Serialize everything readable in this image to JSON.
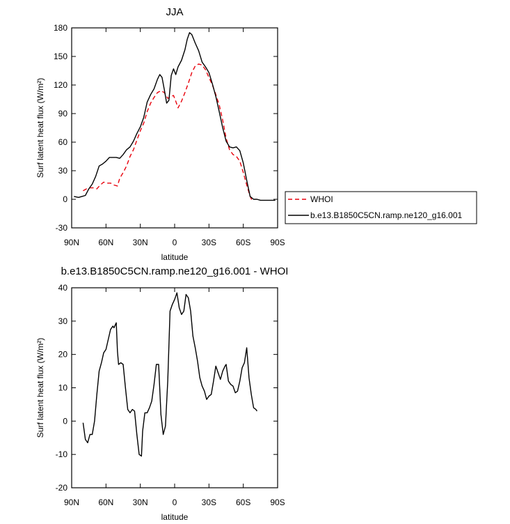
{
  "chart_data": [
    {
      "type": "line",
      "title": "JJA",
      "xlabel": "latitude",
      "ylabel": "Surf latent heat flux (W/m²)",
      "xlim": [
        90,
        -90
      ],
      "ylim": [
        -30,
        180
      ],
      "x_ticks": [
        90,
        60,
        30,
        0,
        -30,
        -60,
        -90
      ],
      "x_tick_labels": [
        "90N",
        "60N",
        "30N",
        "0",
        "30S",
        "60S",
        "90S"
      ],
      "y_ticks": [
        -30,
        0,
        30,
        60,
        90,
        120,
        150,
        180
      ],
      "y_tick_labels": [
        "-30",
        "0",
        "30",
        "60",
        "90",
        "120",
        "150",
        "180"
      ],
      "legend": "right",
      "series": [
        {
          "name": "WHOI",
          "color": "#e8000b",
          "dash": "dashed",
          "points": [
            [
              80,
              9
            ],
            [
              77,
              11
            ],
            [
              74,
              12
            ],
            [
              71,
              12
            ],
            [
              68,
              11
            ],
            [
              65,
              15
            ],
            [
              62,
              18
            ],
            [
              59,
              17
            ],
            [
              56,
              17
            ],
            [
              53,
              15
            ],
            [
              50,
              14
            ],
            [
              48,
              22
            ],
            [
              45,
              28
            ],
            [
              42,
              35
            ],
            [
              39,
              45
            ],
            [
              36,
              52
            ],
            [
              33,
              62
            ],
            [
              30,
              72
            ],
            [
              27,
              80
            ],
            [
              24,
              92
            ],
            [
              21,
              101
            ],
            [
              18,
              107
            ],
            [
              15,
              112
            ],
            [
              12,
              114
            ],
            [
              9,
              112
            ],
            [
              6,
              106
            ],
            [
              3,
              108
            ],
            [
              1,
              109
            ],
            [
              -1,
              103
            ],
            [
              -3,
              96
            ],
            [
              -6,
              103
            ],
            [
              -9,
              112
            ],
            [
              -12,
              122
            ],
            [
              -15,
              133
            ],
            [
              -18,
              140
            ],
            [
              -21,
              142
            ],
            [
              -24,
              141
            ],
            [
              -27,
              136
            ],
            [
              -30,
              128
            ],
            [
              -33,
              120
            ],
            [
              -36,
              110
            ],
            [
              -39,
              99
            ],
            [
              -42,
              83
            ],
            [
              -45,
              64
            ],
            [
              -48,
              52
            ],
            [
              -51,
              47
            ],
            [
              -54,
              45
            ],
            [
              -57,
              40
            ],
            [
              -60,
              28
            ],
            [
              -63,
              15
            ],
            [
              -66,
              3
            ],
            [
              -68,
              -2
            ]
          ]
        },
        {
          "name": "b.e13.B1850C5CN.ramp.ne120_g16.001",
          "color": "#000000",
          "dash": "solid",
          "points": [
            [
              88,
              3
            ],
            [
              84,
              2
            ],
            [
              81,
              3
            ],
            [
              78,
              4
            ],
            [
              75,
              11
            ],
            [
              72,
              16
            ],
            [
              69,
              24
            ],
            [
              66,
              35
            ],
            [
              63,
              37
            ],
            [
              60,
              40
            ],
            [
              57,
              44
            ],
            [
              54,
              44
            ],
            [
              51,
              44
            ],
            [
              48,
              43
            ],
            [
              45,
              47
            ],
            [
              42,
              52
            ],
            [
              39,
              55
            ],
            [
              36,
              61
            ],
            [
              33,
              69
            ],
            [
              30,
              76
            ],
            [
              27,
              86
            ],
            [
              24,
              102
            ],
            [
              21,
              110
            ],
            [
              18,
              116
            ],
            [
              15,
              126
            ],
            [
              13,
              131
            ],
            [
              11,
              128
            ],
            [
              9,
              115
            ],
            [
              7,
              101
            ],
            [
              5,
              104
            ],
            [
              3,
              130
            ],
            [
              1,
              137
            ],
            [
              -1,
              131
            ],
            [
              -3,
              139
            ],
            [
              -6,
              146
            ],
            [
              -9,
              157
            ],
            [
              -11,
              168
            ],
            [
              -13,
              175
            ],
            [
              -15,
              173
            ],
            [
              -18,
              164
            ],
            [
              -21,
              156
            ],
            [
              -24,
              144
            ],
            [
              -27,
              139
            ],
            [
              -30,
              133
            ],
            [
              -33,
              121
            ],
            [
              -36,
              108
            ],
            [
              -39,
              92
            ],
            [
              -42,
              75
            ],
            [
              -45,
              61
            ],
            [
              -48,
              55
            ],
            [
              -51,
              54
            ],
            [
              -54,
              55
            ],
            [
              -57,
              51
            ],
            [
              -60,
              38
            ],
            [
              -63,
              20
            ],
            [
              -66,
              3
            ],
            [
              -69,
              0
            ],
            [
              -72,
              0
            ],
            [
              -75,
              -1
            ],
            [
              -78,
              -1
            ],
            [
              -81,
              -1
            ],
            [
              -85,
              -1
            ],
            [
              -88,
              -1
            ]
          ]
        }
      ]
    },
    {
      "type": "line",
      "title": "b.e13.B1850C5CN.ramp.ne120_g16.001 - WHOI",
      "xlabel": "latitude",
      "ylabel": "Surf latent heat flux (W/m²)",
      "xlim": [
        90,
        -90
      ],
      "ylim": [
        -20,
        40
      ],
      "x_ticks": [
        90,
        60,
        30,
        0,
        -30,
        -60,
        -90
      ],
      "x_tick_labels": [
        "90N",
        "60N",
        "30N",
        "0",
        "30S",
        "60S",
        "90S"
      ],
      "y_ticks": [
        -20,
        -10,
        0,
        10,
        20,
        30,
        40
      ],
      "y_tick_labels": [
        "-20",
        "-10",
        "0",
        "10",
        "20",
        "30",
        "40"
      ],
      "series": [
        {
          "name": "b.e13.B1850C5CN.ramp.ne120_g16.001 - WHOI",
          "color": "#000000",
          "dash": "solid",
          "points": [
            [
              80,
              -0.5
            ],
            [
              78,
              -5.5
            ],
            [
              76,
              -6.5
            ],
            [
              74,
              -4
            ],
            [
              72,
              -4
            ],
            [
              70,
              0
            ],
            [
              68,
              8
            ],
            [
              66,
              15
            ],
            [
              64,
              17.5
            ],
            [
              62,
              20.5
            ],
            [
              60,
              21.5
            ],
            [
              58,
              24.5
            ],
            [
              56,
              27.5
            ],
            [
              54,
              28.5
            ],
            [
              53,
              28
            ],
            [
              51,
              29.5
            ],
            [
              50,
              21
            ],
            [
              49,
              17
            ],
            [
              47,
              17.5
            ],
            [
              45,
              17
            ],
            [
              43,
              10
            ],
            [
              41,
              3.5
            ],
            [
              39,
              2.5
            ],
            [
              37,
              3.5
            ],
            [
              35,
              3
            ],
            [
              33,
              -4
            ],
            [
              31,
              -10
            ],
            [
              29,
              -10.5
            ],
            [
              28,
              -3
            ],
            [
              26,
              2.5
            ],
            [
              24,
              2.5
            ],
            [
              22,
              4
            ],
            [
              20,
              6
            ],
            [
              18,
              11
            ],
            [
              16,
              17
            ],
            [
              14,
              17
            ],
            [
              12,
              2
            ],
            [
              10,
              -4
            ],
            [
              8,
              -1.5
            ],
            [
              6,
              12
            ],
            [
              4,
              33
            ],
            [
              2,
              35
            ],
            [
              0,
              36.5
            ],
            [
              -2,
              38.5
            ],
            [
              -4,
              34
            ],
            [
              -6,
              32
            ],
            [
              -8,
              33
            ],
            [
              -10,
              38
            ],
            [
              -12,
              37
            ],
            [
              -14,
              33
            ],
            [
              -16,
              25.5
            ],
            [
              -18,
              22
            ],
            [
              -20,
              18
            ],
            [
              -22,
              13
            ],
            [
              -24,
              10.5
            ],
            [
              -26,
              9
            ],
            [
              -28,
              6.5
            ],
            [
              -30,
              7.5
            ],
            [
              -32,
              8
            ],
            [
              -34,
              12
            ],
            [
              -36,
              16.5
            ],
            [
              -38,
              14.5
            ],
            [
              -40,
              12.5
            ],
            [
              -42,
              15
            ],
            [
              -44,
              16.5
            ],
            [
              -45,
              17
            ],
            [
              -47,
              12
            ],
            [
              -49,
              11
            ],
            [
              -51,
              10.5
            ],
            [
              -53,
              8.5
            ],
            [
              -55,
              9
            ],
            [
              -57,
              12
            ],
            [
              -59,
              16
            ],
            [
              -61,
              17.5
            ],
            [
              -63,
              22
            ],
            [
              -65,
              13
            ],
            [
              -67,
              8
            ],
            [
              -69,
              4
            ],
            [
              -71,
              3.5
            ],
            [
              -72,
              3
            ]
          ]
        }
      ]
    }
  ]
}
